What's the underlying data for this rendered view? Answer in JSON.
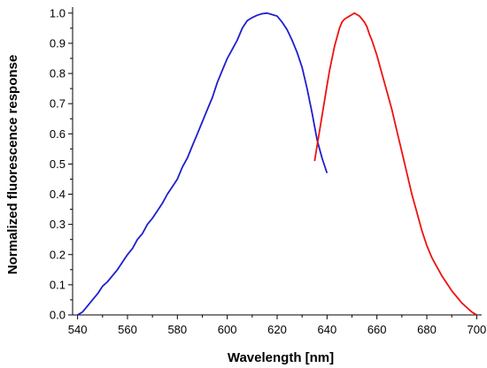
{
  "chart_data": {
    "type": "line",
    "title": "",
    "xlabel": "Wavelength [nm]",
    "ylabel": "Normalized fluorescence response",
    "xlim": [
      538,
      702
    ],
    "ylim": [
      0,
      1.02
    ],
    "x_ticks": [
      "540",
      "560",
      "580",
      "600",
      "620",
      "640",
      "660",
      "680",
      "700"
    ],
    "y_ticks": [
      "0.0",
      "0.1",
      "0.2",
      "0.3",
      "0.4",
      "0.5",
      "0.6",
      "0.7",
      "0.8",
      "0.9",
      "1.0"
    ],
    "grid": false,
    "legend": false,
    "series": [
      {
        "color": "#1f1fcc",
        "x": [
          540,
          542,
          544,
          546,
          548,
          550,
          552,
          554,
          556,
          558,
          560,
          562,
          564,
          566,
          568,
          570,
          572,
          574,
          576,
          578,
          580,
          582,
          584,
          586,
          588,
          590,
          592,
          594,
          596,
          598,
          600,
          602,
          604,
          606,
          608,
          610,
          612,
          614,
          616,
          618,
          620,
          622,
          624,
          626,
          628,
          630,
          632,
          634,
          636,
          638,
          640
        ],
        "y": [
          0.0,
          0.01,
          0.03,
          0.05,
          0.07,
          0.095,
          0.11,
          0.13,
          0.15,
          0.175,
          0.2,
          0.22,
          0.25,
          0.27,
          0.3,
          0.32,
          0.345,
          0.37,
          0.4,
          0.425,
          0.45,
          0.49,
          0.52,
          0.56,
          0.6,
          0.64,
          0.68,
          0.72,
          0.77,
          0.81,
          0.85,
          0.88,
          0.91,
          0.95,
          0.975,
          0.985,
          0.993,
          0.998,
          1.0,
          0.995,
          0.99,
          0.97,
          0.945,
          0.91,
          0.87,
          0.82,
          0.75,
          0.67,
          0.58,
          0.52,
          0.47
        ]
      },
      {
        "color": "#ee1111",
        "x": [
          635,
          636,
          637,
          638,
          639,
          640,
          641,
          642,
          643,
          644,
          645,
          646,
          647,
          648,
          649,
          650,
          651,
          652,
          653,
          654,
          655,
          656,
          657,
          658,
          660,
          662,
          664,
          666,
          668,
          670,
          672,
          674,
          676,
          678,
          680,
          682,
          684,
          686,
          688,
          690,
          692,
          694,
          696,
          698,
          699,
          700
        ],
        "y": [
          0.51,
          0.56,
          0.61,
          0.66,
          0.71,
          0.76,
          0.81,
          0.85,
          0.89,
          0.92,
          0.95,
          0.97,
          0.98,
          0.985,
          0.99,
          0.995,
          1.0,
          0.995,
          0.99,
          0.98,
          0.97,
          0.955,
          0.93,
          0.91,
          0.86,
          0.8,
          0.74,
          0.68,
          0.61,
          0.54,
          0.47,
          0.4,
          0.34,
          0.28,
          0.23,
          0.19,
          0.16,
          0.13,
          0.105,
          0.08,
          0.06,
          0.04,
          0.025,
          0.01,
          0.005,
          0.0
        ]
      }
    ]
  }
}
